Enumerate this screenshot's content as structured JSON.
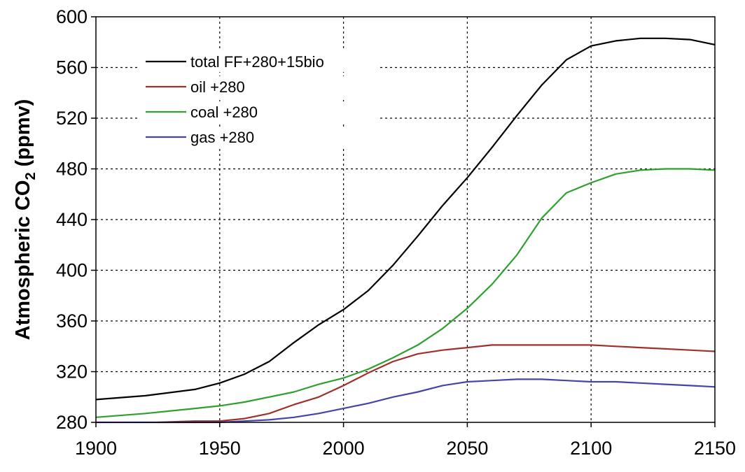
{
  "chart_data": {
    "type": "line",
    "title": "",
    "xlabel": "",
    "ylabel_main": "Atmospheric CO",
    "ylabel_sub": "2",
    "ylabel_units": " (ppmv)",
    "xlim": [
      1900,
      2150
    ],
    "ylim": [
      280,
      600
    ],
    "x_ticks": [
      1900,
      1950,
      2000,
      2050,
      2100,
      2150
    ],
    "y_ticks": [
      280,
      320,
      360,
      400,
      440,
      480,
      520,
      560,
      600
    ],
    "grid": true,
    "legend_position": "top-left",
    "series": [
      {
        "name": "total FF+280+15bio",
        "color": "#000000",
        "x": [
          1900,
          1920,
          1940,
          1950,
          1960,
          1970,
          1980,
          1990,
          2000,
          2010,
          2020,
          2030,
          2040,
          2050,
          2060,
          2070,
          2080,
          2090,
          2100,
          2110,
          2120,
          2130,
          2140,
          2150
        ],
        "y": [
          298,
          301,
          306,
          311,
          318,
          328,
          343,
          357,
          369,
          384,
          404,
          427,
          451,
          473,
          497,
          522,
          546,
          566,
          577,
          581,
          583,
          583,
          582,
          578
        ]
      },
      {
        "name": "oil +280",
        "color": "#a0302a",
        "x": [
          1925,
          1940,
          1950,
          1960,
          1970,
          1980,
          1990,
          2000,
          2010,
          2020,
          2030,
          2040,
          2050,
          2060,
          2070,
          2080,
          2090,
          2100,
          2110,
          2120,
          2130,
          2140,
          2150
        ],
        "y": [
          280,
          281,
          281,
          283,
          287,
          294,
          300,
          309,
          319,
          328,
          334,
          337,
          339,
          341,
          341,
          341,
          341,
          341,
          340,
          339,
          338,
          337,
          336
        ]
      },
      {
        "name": "coal +280",
        "color": "#2ea02e",
        "x": [
          1900,
          1920,
          1940,
          1950,
          1960,
          1970,
          1980,
          1990,
          2000,
          2010,
          2020,
          2030,
          2040,
          2050,
          2060,
          2070,
          2080,
          2090,
          2100,
          2110,
          2120,
          2130,
          2140,
          2150
        ],
        "y": [
          284,
          287,
          291,
          293,
          296,
          300,
          304,
          310,
          315,
          322,
          331,
          341,
          354,
          370,
          389,
          412,
          441,
          461,
          469,
          476,
          479,
          480,
          480,
          479
        ]
      },
      {
        "name": "gas +280",
        "color": "#4444aa",
        "x": [
          1900,
          1950,
          1960,
          1970,
          1980,
          1990,
          2000,
          2010,
          2020,
          2030,
          2040,
          2050,
          2060,
          2070,
          2080,
          2090,
          2100,
          2110,
          2120,
          2130,
          2140,
          2150
        ],
        "y": [
          280,
          280,
          281,
          282,
          284,
          287,
          291,
          295,
          300,
          304,
          309,
          312,
          313,
          314,
          314,
          313,
          312,
          312,
          311,
          310,
          309,
          308
        ]
      }
    ]
  }
}
